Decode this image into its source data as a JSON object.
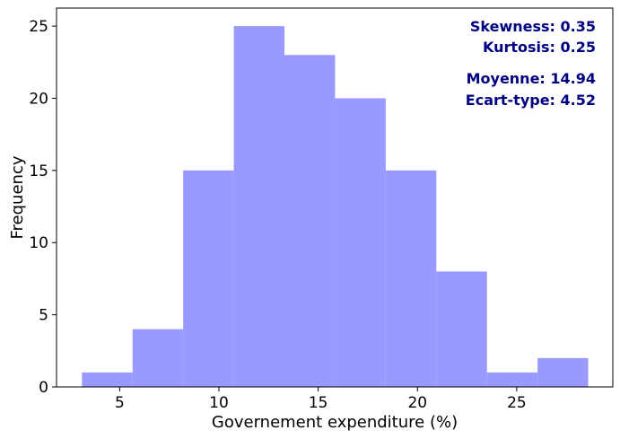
{
  "chart_data": {
    "type": "histogram",
    "title": "",
    "xlabel": "Governement expenditure (%)",
    "ylabel": "Frequency",
    "xlim": [
      1.82,
      29.84
    ],
    "ylim": [
      0,
      26.25
    ],
    "xticks": [
      5,
      10,
      15,
      20,
      25
    ],
    "yticks": [
      0,
      5,
      10,
      15,
      20,
      25
    ],
    "bins": [
      {
        "x0": 3.1,
        "x1": 5.65,
        "count": 1
      },
      {
        "x0": 5.65,
        "x1": 8.2,
        "count": 4
      },
      {
        "x0": 8.2,
        "x1": 10.75,
        "count": 15
      },
      {
        "x0": 10.75,
        "x1": 13.3,
        "count": 25
      },
      {
        "x0": 13.3,
        "x1": 15.85,
        "count": 23
      },
      {
        "x0": 15.85,
        "x1": 18.4,
        "count": 20
      },
      {
        "x0": 18.4,
        "x1": 20.95,
        "count": 15
      },
      {
        "x0": 20.95,
        "x1": 23.5,
        "count": 8
      },
      {
        "x0": 23.5,
        "x1": 26.05,
        "count": 1
      },
      {
        "x0": 26.05,
        "x1": 28.6,
        "count": 2
      }
    ],
    "bar_color": "#9999ff",
    "grid": false,
    "annotations": [
      {
        "text": "Skewness: 0.35"
      },
      {
        "text": "Kurtosis: 0.25"
      },
      {
        "text": "Moyenne: 14.94"
      },
      {
        "text": "Ecart-type: 4.52"
      }
    ],
    "annotation_color": "#000080",
    "annotation_placement": "top-right"
  }
}
